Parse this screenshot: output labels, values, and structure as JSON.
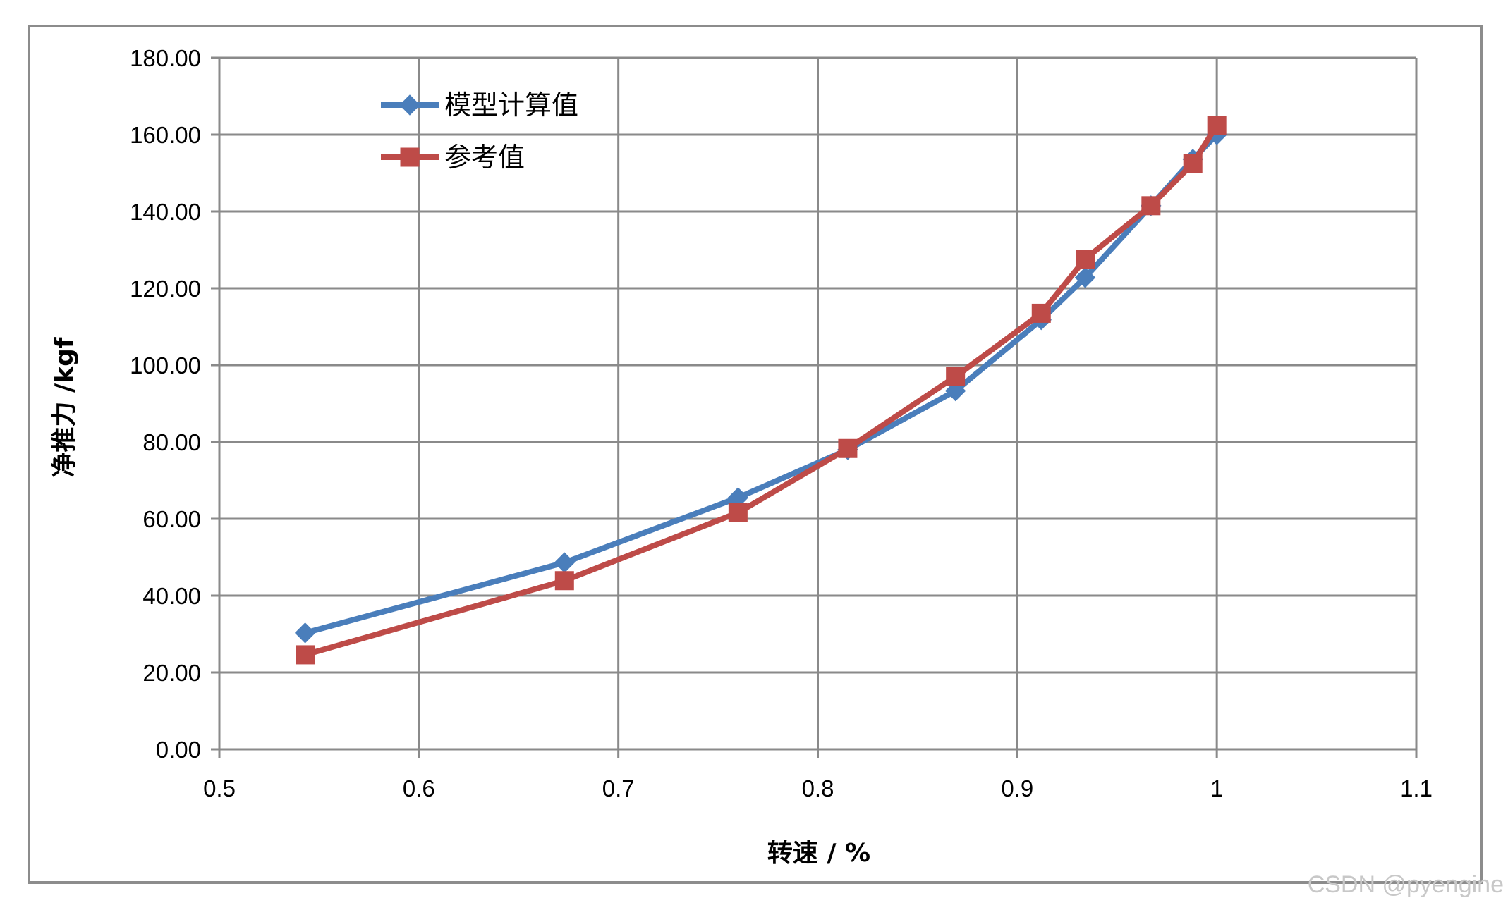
{
  "chart_data": {
    "type": "line",
    "title": "",
    "xlabel": "转速 / %",
    "ylabel": "净推力 /kgf",
    "xlim": [
      0.5,
      1.1
    ],
    "ylim": [
      0,
      180
    ],
    "x_ticks": [
      "0.5",
      "0.6",
      "0.7",
      "0.8",
      "0.9",
      "1",
      "1.1"
    ],
    "y_ticks": [
      "0.00",
      "20.00",
      "40.00",
      "60.00",
      "80.00",
      "100.00",
      "120.00",
      "140.00",
      "160.00",
      "180.00"
    ],
    "grid": true,
    "legend_position": "top-left",
    "series": [
      {
        "name": "模型计算值",
        "color": "#4a7ebb",
        "marker": "diamond",
        "x": [
          0.543,
          0.673,
          0.76,
          0.815,
          0.869,
          0.912,
          0.934,
          0.967,
          0.988,
          1.0
        ],
        "y": [
          30.3,
          48.6,
          65.5,
          78.0,
          93.3,
          111.8,
          122.8,
          141.5,
          153.6,
          160.0
        ]
      },
      {
        "name": "参考值",
        "color": "#be4b48",
        "marker": "square",
        "x": [
          0.543,
          0.673,
          0.76,
          0.815,
          0.869,
          0.912,
          0.934,
          0.967,
          0.988,
          1.0
        ],
        "y": [
          24.6,
          43.9,
          61.6,
          78.3,
          97.0,
          113.5,
          127.6,
          141.5,
          152.5,
          162.4
        ]
      }
    ]
  },
  "watermark": "CSDN @pyengine"
}
